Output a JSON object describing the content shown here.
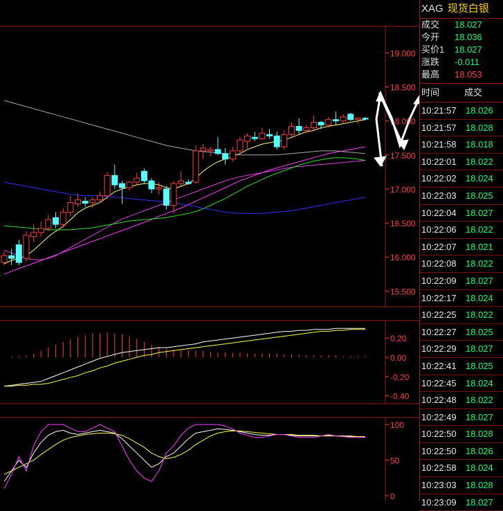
{
  "header": {
    "symbol": "XAG",
    "name": "现货白银"
  },
  "quote": [
    {
      "label": "成交",
      "value": "18.027",
      "color": "#19ff6e"
    },
    {
      "label": "今开",
      "value": "18.036",
      "color": "#19ff6e"
    },
    {
      "label": "买价1",
      "value": "18.027",
      "color": "#19ff6e"
    },
    {
      "label": "涨跌",
      "value": "-0.011",
      "color": "#19ff6e"
    },
    {
      "label": "最高",
      "value": "18.053",
      "color": "#ff4040"
    }
  ],
  "trades_header": {
    "time": "时间",
    "price": "成交"
  },
  "trades": [
    {
      "time": "10:21:57",
      "price": "18.026"
    },
    {
      "time": "10:21:57",
      "price": "18.028"
    },
    {
      "time": "10:21:58",
      "price": "18.018"
    },
    {
      "time": "10:22:01",
      "price": "18.022"
    },
    {
      "time": "10:22:02",
      "price": "18.024"
    },
    {
      "time": "10:22:03",
      "price": "18.025"
    },
    {
      "time": "10:22:04",
      "price": "18.027"
    },
    {
      "time": "10:22:06",
      "price": "18.022"
    },
    {
      "time": "10:22:07",
      "price": "18.021"
    },
    {
      "time": "10:22:08",
      "price": "18.022"
    },
    {
      "time": "10:22:09",
      "price": "18.027"
    },
    {
      "time": "10:22:17",
      "price": "18.024"
    },
    {
      "time": "10:22:25",
      "price": "18.022"
    },
    {
      "time": "10:22:27",
      "price": "18.025"
    },
    {
      "time": "10:22:29",
      "price": "18.027"
    },
    {
      "time": "10:22:41",
      "price": "18.025"
    },
    {
      "time": "10:22:45",
      "price": "18.024"
    },
    {
      "time": "10:22:48",
      "price": "18.022"
    },
    {
      "time": "10:22:49",
      "price": "18.027"
    },
    {
      "time": "10:22:50",
      "price": "18.028"
    },
    {
      "time": "10:22:50",
      "price": "18.026"
    },
    {
      "time": "10:22:58",
      "price": "18.024"
    },
    {
      "time": "10:23:03",
      "price": "18.028"
    },
    {
      "time": "10:23:09",
      "price": "18.027"
    }
  ],
  "colors": {
    "grid": "#9b1c1c",
    "up": "#ff4040",
    "down": "#55ffff",
    "axis": "#ff4040",
    "green": "#19ff6e"
  },
  "chart_data": {
    "type": "candlestick",
    "price_axis": {
      "ticks": [
        "19.000",
        "18.500",
        "18.000",
        "17.500",
        "17.000",
        "16.500",
        "16.000",
        "15.500"
      ],
      "ylim": [
        15.3,
        19.35
      ]
    },
    "candles": [
      {
        "o": 15.92,
        "h": 16.08,
        "l": 15.88,
        "c": 16.02
      },
      {
        "o": 16.02,
        "h": 16.12,
        "l": 15.88,
        "c": 15.98
      },
      {
        "o": 16.18,
        "h": 16.25,
        "l": 15.88,
        "c": 15.92
      },
      {
        "o": 15.98,
        "h": 16.38,
        "l": 15.93,
        "c": 16.32
      },
      {
        "o": 16.3,
        "h": 16.48,
        "l": 16.22,
        "c": 16.36
      },
      {
        "o": 16.36,
        "h": 16.52,
        "l": 16.3,
        "c": 16.42
      },
      {
        "o": 16.42,
        "h": 16.62,
        "l": 16.38,
        "c": 16.55
      },
      {
        "o": 16.58,
        "h": 16.66,
        "l": 16.42,
        "c": 16.48
      },
      {
        "o": 16.48,
        "h": 16.72,
        "l": 16.43,
        "c": 16.66
      },
      {
        "o": 16.66,
        "h": 16.9,
        "l": 16.6,
        "c": 16.8
      },
      {
        "o": 16.78,
        "h": 16.93,
        "l": 16.74,
        "c": 16.84
      },
      {
        "o": 16.82,
        "h": 16.88,
        "l": 16.74,
        "c": 16.79
      },
      {
        "o": 16.8,
        "h": 16.88,
        "l": 16.72,
        "c": 16.84
      },
      {
        "o": 16.84,
        "h": 16.96,
        "l": 16.8,
        "c": 16.9
      },
      {
        "o": 16.9,
        "h": 17.25,
        "l": 16.86,
        "c": 17.2
      },
      {
        "o": 17.2,
        "h": 17.36,
        "l": 17.0,
        "c": 17.06
      },
      {
        "o": 17.08,
        "h": 17.12,
        "l": 16.78,
        "c": 17.02
      },
      {
        "o": 17.02,
        "h": 17.12,
        "l": 16.98,
        "c": 17.1
      },
      {
        "o": 17.1,
        "h": 17.24,
        "l": 17.06,
        "c": 17.16
      },
      {
        "o": 17.26,
        "h": 17.3,
        "l": 17.08,
        "c": 17.12
      },
      {
        "o": 17.12,
        "h": 17.16,
        "l": 16.94,
        "c": 17.0
      },
      {
        "o": 17.0,
        "h": 17.1,
        "l": 16.92,
        "c": 17.02
      },
      {
        "o": 17.0,
        "h": 17.04,
        "l": 16.7,
        "c": 16.76
      },
      {
        "o": 16.76,
        "h": 17.12,
        "l": 16.64,
        "c": 17.08
      },
      {
        "o": 17.08,
        "h": 17.26,
        "l": 17.04,
        "c": 17.12
      },
      {
        "o": 17.1,
        "h": 17.14,
        "l": 17.06,
        "c": 17.08
      },
      {
        "o": 17.1,
        "h": 17.64,
        "l": 17.08,
        "c": 17.56
      },
      {
        "o": 17.56,
        "h": 17.66,
        "l": 17.44,
        "c": 17.6
      },
      {
        "o": 17.56,
        "h": 17.62,
        "l": 17.48,
        "c": 17.58
      },
      {
        "o": 17.58,
        "h": 17.76,
        "l": 17.5,
        "c": 17.52
      },
      {
        "o": 17.52,
        "h": 17.6,
        "l": 17.36,
        "c": 17.44
      },
      {
        "o": 17.44,
        "h": 17.62,
        "l": 17.4,
        "c": 17.56
      },
      {
        "o": 17.56,
        "h": 17.76,
        "l": 17.52,
        "c": 17.72
      },
      {
        "o": 17.7,
        "h": 17.82,
        "l": 17.6,
        "c": 17.78
      },
      {
        "o": 17.76,
        "h": 17.84,
        "l": 17.7,
        "c": 17.74
      },
      {
        "o": 17.74,
        "h": 17.9,
        "l": 17.72,
        "c": 17.82
      },
      {
        "o": 17.8,
        "h": 17.88,
        "l": 17.74,
        "c": 17.78
      },
      {
        "o": 17.78,
        "h": 17.84,
        "l": 17.58,
        "c": 17.62
      },
      {
        "o": 17.62,
        "h": 17.86,
        "l": 17.58,
        "c": 17.8
      },
      {
        "o": 17.8,
        "h": 17.98,
        "l": 17.76,
        "c": 17.92
      },
      {
        "o": 17.92,
        "h": 18.04,
        "l": 17.8,
        "c": 17.86
      },
      {
        "o": 17.86,
        "h": 17.94,
        "l": 17.82,
        "c": 17.9
      },
      {
        "o": 17.9,
        "h": 18.08,
        "l": 17.86,
        "c": 17.98
      },
      {
        "o": 17.98,
        "h": 18.0,
        "l": 17.88,
        "c": 17.94
      },
      {
        "o": 17.94,
        "h": 18.06,
        "l": 17.9,
        "c": 18.02
      },
      {
        "o": 18.02,
        "h": 18.14,
        "l": 17.94,
        "c": 18.0
      },
      {
        "o": 18.0,
        "h": 18.1,
        "l": 17.96,
        "c": 18.06
      },
      {
        "o": 18.1,
        "h": 18.12,
        "l": 18.0,
        "c": 18.02
      },
      {
        "o": 18.02,
        "h": 18.06,
        "l": 17.96,
        "c": 18.04
      },
      {
        "o": 18.04,
        "h": 18.06,
        "l": 18.01,
        "c": 18.027
      }
    ],
    "ma_lines": [
      {
        "color": "#ffff80",
        "values": [
          15.9,
          15.95,
          15.98,
          16.02,
          16.1,
          16.2,
          16.3,
          16.38,
          16.45,
          16.55,
          16.65,
          16.72,
          16.76,
          16.8,
          16.88,
          16.96,
          17.0,
          17.03,
          17.06,
          17.08,
          17.08,
          17.06,
          17.02,
          17.0,
          17.04,
          17.08,
          17.16,
          17.26,
          17.34,
          17.4,
          17.44,
          17.48,
          17.52,
          17.58,
          17.62,
          17.66,
          17.68,
          17.7,
          17.72,
          17.76,
          17.8,
          17.84,
          17.86,
          17.9,
          17.92,
          17.94,
          17.96,
          17.98,
          18.0,
          18.02
        ]
      },
      {
        "color": "#ff40ff",
        "values": [
          15.75,
          15.79,
          15.83,
          15.87,
          15.91,
          15.95,
          15.99,
          16.03,
          16.07,
          16.11,
          16.15,
          16.19,
          16.23,
          16.27,
          16.31,
          16.35,
          16.39,
          16.43,
          16.47,
          16.51,
          16.55,
          16.6,
          16.64,
          16.68,
          16.72,
          16.77,
          16.82,
          16.87,
          16.92,
          16.97,
          17.02,
          17.07,
          17.12,
          17.16,
          17.2,
          17.24,
          17.28,
          17.31,
          17.34,
          17.37,
          17.4,
          17.43,
          17.46,
          17.49,
          17.52,
          17.54,
          17.56,
          17.58,
          17.6,
          17.62
        ]
      },
      {
        "color": "#e040e0",
        "values": [
          16.1,
          16.06,
          16.02,
          15.98,
          15.96,
          15.96,
          15.98,
          16.02,
          16.08,
          16.14,
          16.2,
          16.26,
          16.32,
          16.38,
          16.44,
          16.5,
          16.56,
          16.6,
          16.64,
          16.68,
          16.72,
          16.76,
          16.8,
          16.84,
          16.88,
          16.92,
          16.96,
          17.0,
          17.04,
          17.08,
          17.12,
          17.15,
          17.18,
          17.2,
          17.22,
          17.24,
          17.26,
          17.28,
          17.3,
          17.32,
          17.33,
          17.34,
          17.35,
          17.36,
          17.37,
          17.38,
          17.39,
          17.4,
          17.41,
          17.42
        ]
      },
      {
        "color": "#30e030",
        "values": [
          16.46,
          16.45,
          16.44,
          16.43,
          16.42,
          16.41,
          16.4,
          16.4,
          16.4,
          16.4,
          16.41,
          16.42,
          16.43,
          16.45,
          16.47,
          16.49,
          16.51,
          16.53,
          16.54,
          16.55,
          16.56,
          16.57,
          16.58,
          16.6,
          16.62,
          16.64,
          16.67,
          16.71,
          16.76,
          16.81,
          16.86,
          16.92,
          16.98,
          17.04,
          17.09,
          17.14,
          17.19,
          17.23,
          17.27,
          17.31,
          17.35,
          17.38,
          17.41,
          17.43,
          17.45,
          17.46,
          17.46,
          17.45,
          17.44,
          17.42
        ]
      },
      {
        "color": "#a8a8a8",
        "values": [
          18.3,
          18.27,
          18.24,
          18.21,
          18.18,
          18.15,
          18.12,
          18.09,
          18.06,
          18.03,
          18.0,
          17.97,
          17.94,
          17.91,
          17.88,
          17.85,
          17.82,
          17.79,
          17.76,
          17.73,
          17.7,
          17.67,
          17.64,
          17.62,
          17.6,
          17.58,
          17.56,
          17.55,
          17.54,
          17.53,
          17.52,
          17.51,
          17.5,
          17.5,
          17.5,
          17.5,
          17.5,
          17.5,
          17.51,
          17.52,
          17.53,
          17.54,
          17.55,
          17.56,
          17.56,
          17.56,
          17.55,
          17.54,
          17.53,
          17.52
        ]
      },
      {
        "color": "#3030ff",
        "values": [
          17.1,
          17.08,
          17.06,
          17.04,
          17.02,
          17.0,
          16.98,
          16.96,
          16.94,
          16.92,
          16.91,
          16.9,
          16.9,
          16.9,
          16.89,
          16.88,
          16.87,
          16.86,
          16.85,
          16.84,
          16.83,
          16.82,
          16.81,
          16.8,
          16.78,
          16.76,
          16.74,
          16.72,
          16.7,
          16.68,
          16.66,
          16.65,
          16.64,
          16.64,
          16.64,
          16.64,
          16.65,
          16.66,
          16.67,
          16.68,
          16.7,
          16.72,
          16.74,
          16.76,
          16.78,
          16.8,
          16.82,
          16.84,
          16.86,
          16.88
        ]
      }
    ],
    "macd": {
      "axis_ticks": [
        "0.20",
        "0.00",
        "-0.20",
        "-0.40"
      ],
      "ylim": [
        -0.46,
        0.36
      ],
      "dif": [
        -0.3,
        -0.29,
        -0.28,
        -0.27,
        -0.26,
        -0.25,
        -0.22,
        -0.19,
        -0.16,
        -0.13,
        -0.1,
        -0.07,
        -0.04,
        -0.01,
        0.01,
        0.03,
        0.05,
        0.06,
        0.07,
        0.08,
        0.09,
        0.1,
        0.1,
        0.11,
        0.12,
        0.13,
        0.14,
        0.16,
        0.17,
        0.18,
        0.19,
        0.2,
        0.21,
        0.22,
        0.23,
        0.24,
        0.25,
        0.26,
        0.27,
        0.27,
        0.28,
        0.28,
        0.29,
        0.29,
        0.29,
        0.3,
        0.3,
        0.3,
        0.3,
        0.3
      ],
      "dea": [
        -0.3,
        -0.3,
        -0.29,
        -0.29,
        -0.28,
        -0.28,
        -0.27,
        -0.25,
        -0.23,
        -0.21,
        -0.19,
        -0.16,
        -0.14,
        -0.11,
        -0.09,
        -0.06,
        -0.04,
        -0.02,
        0.0,
        0.02,
        0.03,
        0.05,
        0.06,
        0.07,
        0.08,
        0.09,
        0.1,
        0.11,
        0.12,
        0.13,
        0.14,
        0.15,
        0.16,
        0.17,
        0.18,
        0.19,
        0.2,
        0.21,
        0.22,
        0.23,
        0.24,
        0.25,
        0.26,
        0.27,
        0.27,
        0.28,
        0.28,
        0.29,
        0.29,
        0.29
      ],
      "hist": [
        0.0,
        0.01,
        0.01,
        0.02,
        0.04,
        0.07,
        0.1,
        0.13,
        0.16,
        0.19,
        0.21,
        0.23,
        0.25,
        0.25,
        0.26,
        0.25,
        0.24,
        0.22,
        0.19,
        0.16,
        0.13,
        0.11,
        0.09,
        0.08,
        0.08,
        0.08,
        0.07,
        0.07,
        0.06,
        0.05,
        0.05,
        0.05,
        0.05,
        0.04,
        0.04,
        0.04,
        0.04,
        0.04,
        0.03,
        0.03,
        0.03,
        0.02,
        0.02,
        0.02,
        0.02,
        0.02,
        0.01,
        0.01,
        0.01,
        0.01
      ]
    },
    "oscillator": {
      "axis_ticks": [
        "100",
        "50",
        "0"
      ],
      "ylim": [
        0,
        105
      ],
      "k": [
        20,
        35,
        50,
        40,
        60,
        75,
        85,
        90,
        92,
        88,
        86,
        88,
        90,
        92,
        90,
        88,
        80,
        70,
        60,
        50,
        40,
        45,
        55,
        60,
        70,
        80,
        88,
        90,
        92,
        94,
        93,
        92,
        90,
        88,
        86,
        85,
        85,
        86,
        86,
        85,
        84,
        84,
        84,
        84,
        85,
        84,
        84,
        83,
        83,
        83
      ],
      "d": [
        30,
        35,
        40,
        45,
        50,
        58,
        65,
        72,
        78,
        82,
        84,
        86,
        87,
        88,
        88,
        87,
        85,
        80,
        74,
        68,
        60,
        55,
        52,
        54,
        58,
        64,
        72,
        78,
        84,
        88,
        90,
        91,
        91,
        90,
        89,
        88,
        87,
        86,
        86,
        86,
        85,
        85,
        85,
        84,
        84,
        84,
        84,
        84,
        83,
        83
      ],
      "j": [
        10,
        30,
        55,
        35,
        70,
        90,
        100,
        100,
        100,
        95,
        90,
        90,
        95,
        100,
        95,
        90,
        70,
        50,
        35,
        25,
        20,
        35,
        60,
        70,
        85,
        95,
        100,
        100,
        100,
        100,
        98,
        94,
        88,
        85,
        82,
        82,
        84,
        86,
        86,
        84,
        82,
        82,
        82,
        84,
        86,
        84,
        83,
        82,
        82,
        82
      ]
    }
  }
}
